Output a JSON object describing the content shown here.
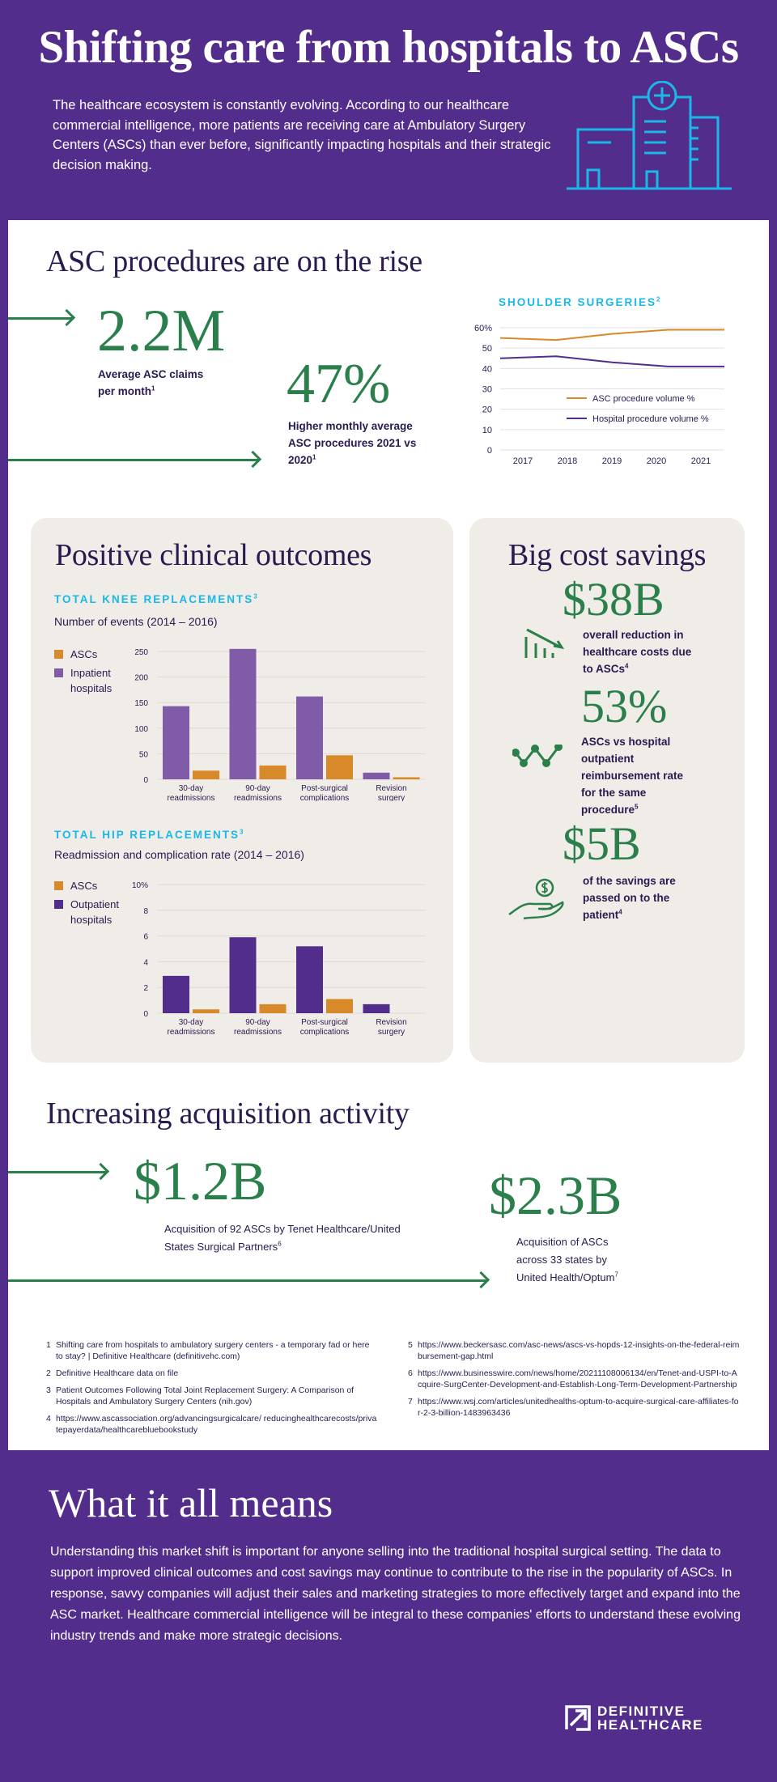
{
  "header": {
    "title": "Shifting care from hospitals to ASCs",
    "intro": "The healthcare ecosystem is constantly evolving. According to our healthcare commercial intelligence, more patients are receiving care at Ambulatory Surgery Centers (ASCs) than ever before, significantly impacting hospitals and their strategic decision making.",
    "icon": "hospital-icon"
  },
  "rise": {
    "heading": "ASC procedures are on the rise",
    "stats": [
      {
        "value": "2.2M",
        "caption": "Average ASC claims per month",
        "note": "1"
      },
      {
        "value": "47%",
        "caption": "Higher monthly average ASC procedures 2021 vs 2020",
        "note": "1"
      }
    ]
  },
  "clinical": {
    "heading": "Positive clinical outcomes"
  },
  "savings": {
    "heading": "Big cost savings",
    "items": [
      {
        "value": "$38B",
        "caption": "overall reduction in healthcare costs due to ASCs",
        "note": "4",
        "icon": "chart-down-icon"
      },
      {
        "value": "53%",
        "caption": "ASCs vs hospital outpatient reimbursement rate for the same procedure",
        "note": "5",
        "icon": "trend-line-icon"
      },
      {
        "value": "$5B",
        "caption": "of the savings are passed on to the patient",
        "note": "4",
        "icon": "hand-coin-icon"
      }
    ]
  },
  "acquisition": {
    "heading": "Increasing acquisition activity",
    "items": [
      {
        "value": "$1.2B",
        "caption": "Acquisition of 92 ASCs by Tenet Healthcare/United States Surgical Partners",
        "note": "6"
      },
      {
        "value": "$2.3B",
        "caption": "Acquisition of ASCs across 33 states by United Health/Optum",
        "note": "7"
      }
    ]
  },
  "footnotes": [
    {
      "num": "1",
      "text": "Shifting care from hospitals to ambulatory surgery centers - a temporary fad or here to stay? | Definitive Healthcare (definitivehc.com)"
    },
    {
      "num": "2",
      "text": "Definitive Healthcare data on file"
    },
    {
      "num": "3",
      "text": "Patient Outcomes Following Total Joint Replacement Surgery: A Comparison of Hospitals and Ambulatory Surgery Centers (nih.gov)"
    },
    {
      "num": "4",
      "text": "https://www.ascassociation.org/advancingsurgicalcare/ reducinghealthcarecosts/privatepayerdata/healthcarebluebookstudy"
    },
    {
      "num": "5",
      "text": "https://www.beckersasc.com/asc-news/ascs-vs-hopds-12-insights-on-the-federal-reimbursement-gap.html"
    },
    {
      "num": "6",
      "text": "https://www.businesswire.com/news/home/20211108006134/en/Tenet-and-USPI-to-Acquire-SurgCenter-Development-and-Establish-Long-Term-Development-Partnership"
    },
    {
      "num": "7",
      "text": "https://www.wsj.com/articles/unitedhealths-optum-to-acquire-surgical-care-affiliates-for-2-3-billion-1483963436"
    }
  ],
  "conclusion": {
    "heading": "What it all means",
    "body": "Understanding this market shift is important for anyone selling into the traditional hospital surgical setting. The data to support improved clinical outcomes and cost savings may continue to contribute to the rise in the popularity of ASCs. In response, savvy companies will adjust their sales and marketing strategies to more effectively target and expand into the ASC market. Healthcare commercial intelligence will be integral to these companies' efforts to understand these evolving industry trends and make more strategic decisions."
  },
  "logo": {
    "line1": "DEFINITIVE",
    "line2": "HEALTHCARE"
  },
  "colors": {
    "purple": "#532d8c",
    "green": "#2a7f4a",
    "cyan": "#1ab8e8",
    "orange": "#d8892a",
    "knee_purple": "#7f5ba8"
  },
  "chart_data": [
    {
      "type": "line",
      "title": "SHOULDER SURGERIES",
      "title_note": "2",
      "x": [
        "2017",
        "2018",
        "2019",
        "2020",
        "2021"
      ],
      "ylim": [
        0,
        60
      ],
      "yticks": [
        "0",
        "10",
        "20",
        "30",
        "40",
        "50",
        "60%"
      ],
      "grid": true,
      "legend": "inside-lower-right",
      "series": [
        {
          "name": "ASC procedure volume %",
          "values": [
            55,
            54,
            57,
            59,
            59
          ],
          "color": "#d8892a"
        },
        {
          "name": "Hospital procedure volume %",
          "values": [
            45,
            46,
            43,
            41,
            41
          ],
          "color": "#532d8c"
        }
      ]
    },
    {
      "type": "bar",
      "title": "TOTAL KNEE REPLACEMENTS",
      "title_note": "3",
      "subtitle": "Number of events (2014 – 2016)",
      "categories": [
        "30-day readmissions",
        "90-day readmissions",
        "Post-surgical complications",
        "Revision surgery"
      ],
      "ylim": [
        0,
        250
      ],
      "yticks": [
        "0",
        "50",
        "100",
        "150",
        "200",
        "250"
      ],
      "grid": true,
      "legend": "left",
      "series": [
        {
          "name": "Inpatient hospitals",
          "values": [
            143,
            255,
            162,
            13
          ],
          "color": "#7f5ba8"
        },
        {
          "name": "ASCs",
          "values": [
            17,
            27,
            47,
            4
          ],
          "color": "#d8892a"
        }
      ],
      "legend_order": [
        "ASCs",
        "Inpatient hospitals"
      ]
    },
    {
      "type": "bar",
      "title": "TOTAL HIP REPLACEMENTS",
      "title_note": "3",
      "subtitle": "Readmission and complication rate (2014 – 2016)",
      "categories": [
        "30-day readmissions",
        "90-day readmissions",
        "Post-surgical complications",
        "Revision surgery"
      ],
      "ylim": [
        0,
        10
      ],
      "yticks": [
        "0",
        "2",
        "4",
        "6",
        "8",
        "10%"
      ],
      "grid": true,
      "legend": "left",
      "series": [
        {
          "name": "Outpatient hospitals",
          "values": [
            2.9,
            5.9,
            5.2,
            0.7
          ],
          "color": "#532d8c"
        },
        {
          "name": "ASCs",
          "values": [
            0.3,
            0.7,
            1.1,
            0
          ],
          "color": "#d8892a"
        }
      ],
      "legend_order": [
        "ASCs",
        "Outpatient hospitals"
      ]
    }
  ]
}
